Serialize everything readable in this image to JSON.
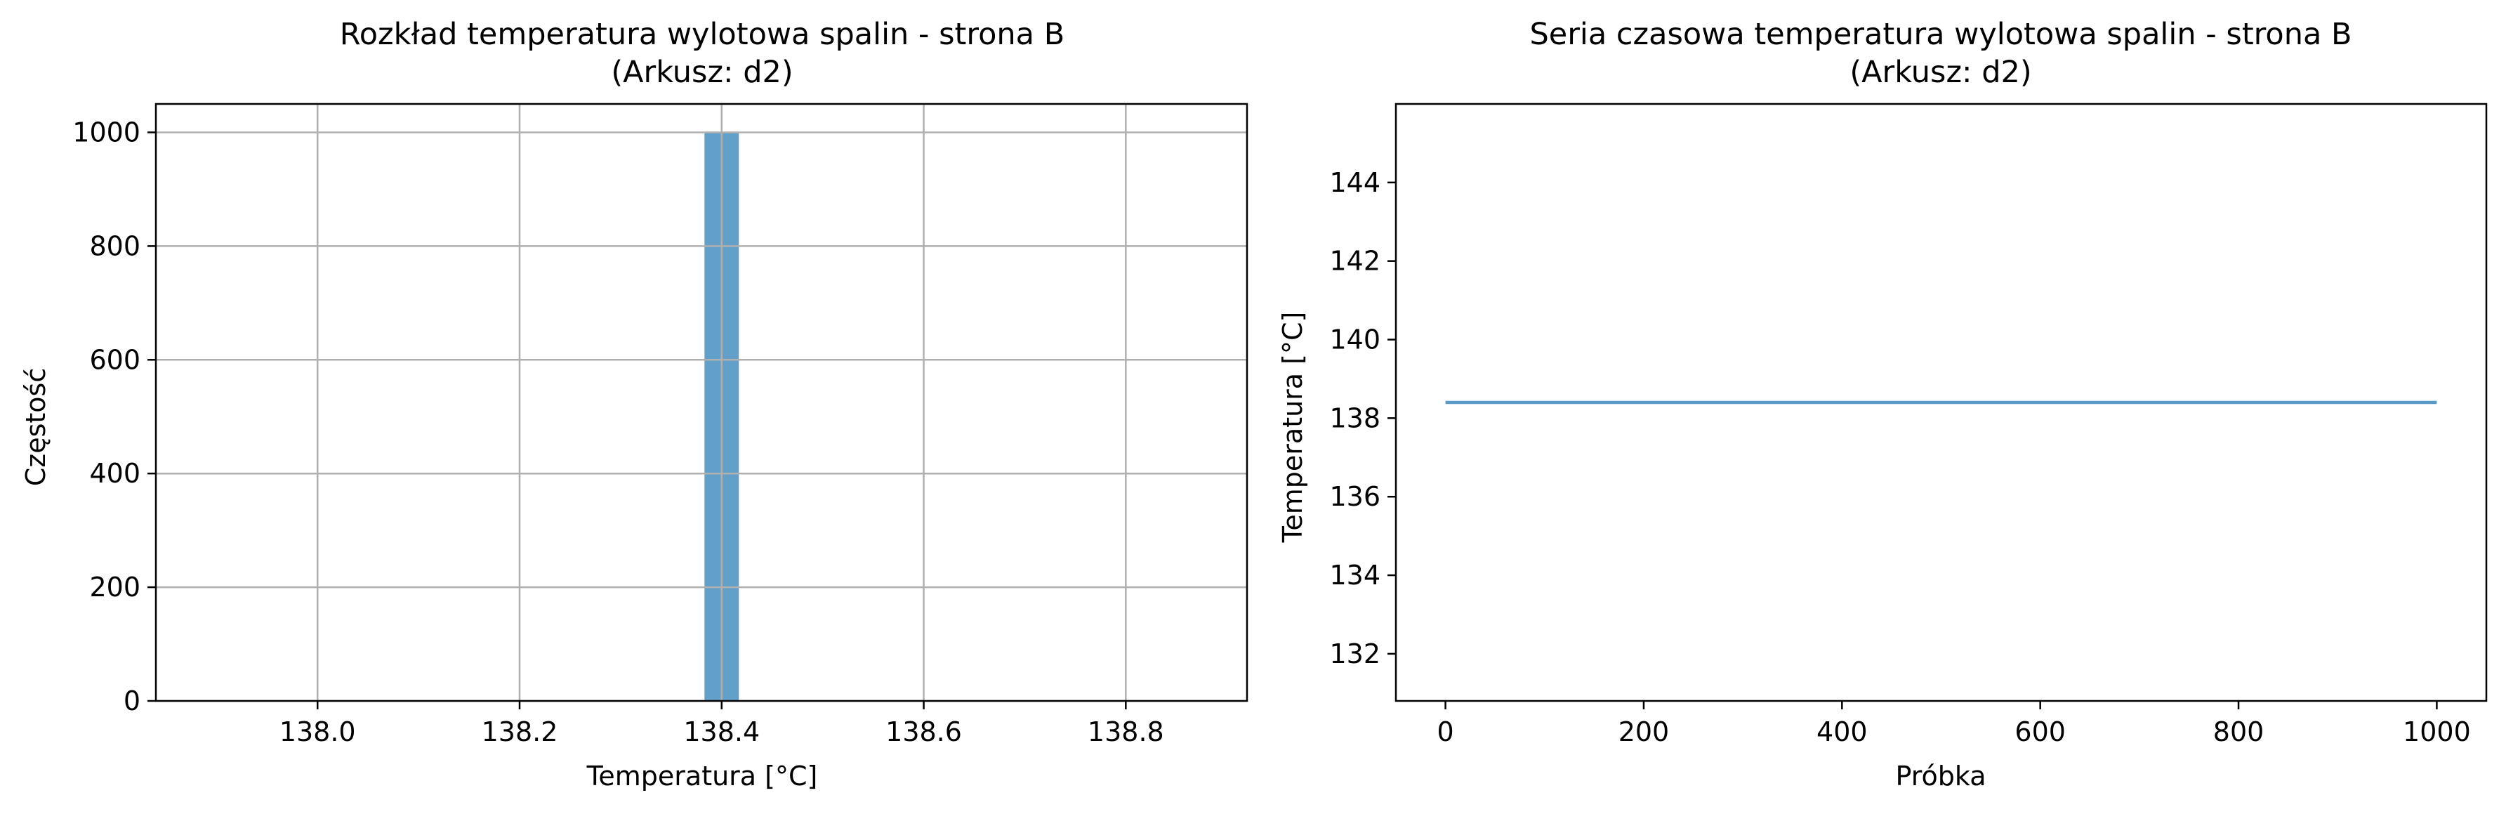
{
  "chart_data": [
    {
      "type": "bar",
      "title_line1": "Rozkład temperatura wylotowa spalin - strona B",
      "title_line2": "(Arkusz: d2)",
      "xlabel": "Temperatura [°C]",
      "ylabel": "Częstość",
      "xlim": [
        137.84,
        138.92
      ],
      "ylim": [
        0,
        1050
      ],
      "xticks": [
        138.0,
        138.2,
        138.4,
        138.6,
        138.8
      ],
      "xtick_labels": [
        "138.0",
        "138.2",
        "138.4",
        "138.6",
        "138.8"
      ],
      "yticks": [
        0,
        200,
        400,
        600,
        800,
        1000
      ],
      "ytick_labels": [
        "0",
        "200",
        "400",
        "600",
        "800",
        "1000"
      ],
      "grid": true,
      "bars": [
        {
          "x0": 138.383,
          "x1": 138.4,
          "value": 1000
        },
        {
          "x0": 138.4,
          "x1": 138.417,
          "value": 1000
        }
      ],
      "color": "#5a9ac6"
    },
    {
      "type": "line",
      "title_line1": "Seria czasowa temperatura wylotowa spalin - strona B",
      "title_line2": "(Arkusz: d2)",
      "xlabel": "Próbka",
      "ylabel": "Temperatura [°C]",
      "xlim": [
        -50,
        1050
      ],
      "ylim": [
        130.8,
        146.0
      ],
      "xticks": [
        0,
        200,
        400,
        600,
        800,
        1000
      ],
      "xtick_labels": [
        "0",
        "200",
        "400",
        "600",
        "800",
        "1000"
      ],
      "yticks": [
        132,
        134,
        136,
        138,
        140,
        142,
        144
      ],
      "ytick_labels": [
        "132",
        "134",
        "136",
        "138",
        "140",
        "142",
        "144"
      ],
      "grid": false,
      "series": [
        {
          "x": [
            0,
            1000
          ],
          "y": [
            138.4,
            138.4
          ]
        }
      ],
      "color": "#5a9ac6"
    }
  ]
}
